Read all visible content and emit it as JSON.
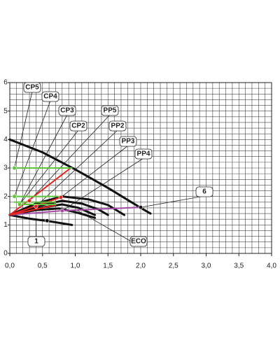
{
  "chart_data": {
    "type": "line",
    "xlim": [
      0,
      4
    ],
    "ylim": [
      0,
      6
    ],
    "xticks": [
      {
        "value": 0,
        "label": "0,0"
      },
      {
        "value": 0.5,
        "label": "0,5"
      },
      {
        "value": 1,
        "label": "1,0"
      },
      {
        "value": 1.5,
        "label": "1,5"
      },
      {
        "value": 2,
        "label": "2,0"
      },
      {
        "value": 2.5,
        "label": "2,5"
      },
      {
        "value": 3,
        "label": "3,0"
      },
      {
        "value": 3.5,
        "label": "3,5"
      },
      {
        "value": 4,
        "label": "4,0"
      }
    ],
    "yticks": [
      0,
      1,
      2,
      3,
      4,
      5,
      6
    ],
    "grid": true,
    "x_grid_step": 0.1,
    "y_grid_step": 0.2,
    "series": [
      {
        "color": "#111111",
        "width": 3,
        "x": [
          0,
          0.5,
          1.0,
          1.5,
          2.0,
          2.15
        ],
        "values": [
          4.0,
          3.55,
          2.95,
          2.3,
          1.6,
          1.4
        ]
      },
      {
        "color": "#111111",
        "width": 3,
        "x": [
          0,
          0.3,
          0.6,
          0.95
        ],
        "values": [
          1.35,
          1.22,
          1.13,
          1.0
        ]
      },
      {
        "color": "#111111",
        "width": 3,
        "x": [
          0,
          0.4,
          0.8,
          1.2,
          1.5,
          1.75
        ],
        "values": [
          1.35,
          1.75,
          2.0,
          1.9,
          1.7,
          1.35
        ]
      },
      {
        "color": "#111111",
        "width": 3,
        "x": [
          0,
          0.4,
          0.8,
          1.1,
          1.35,
          1.5
        ],
        "values": [
          1.35,
          1.65,
          1.85,
          1.75,
          1.55,
          1.35
        ]
      },
      {
        "color": "#111111",
        "width": 3,
        "x": [
          0,
          0.4,
          0.8,
          1.05,
          1.3
        ],
        "values": [
          1.35,
          1.58,
          1.72,
          1.6,
          1.35
        ]
      },
      {
        "color": "#111111",
        "width": 3,
        "x": [
          0,
          0.4,
          0.75,
          1.0,
          1.3
        ],
        "values": [
          1.35,
          1.52,
          1.58,
          1.45,
          1.25
        ]
      },
      {
        "color": "#a64ca6",
        "width": 2,
        "x": [
          0,
          0.8,
          2.0
        ],
        "values": [
          1.35,
          1.5,
          1.62
        ]
      },
      {
        "color": "#e8231f",
        "width": 2,
        "x": [
          0,
          0.93
        ],
        "values": [
          1.35,
          3.0
        ]
      },
      {
        "color": "#e8231f",
        "width": 2,
        "x": [
          0,
          0.78
        ],
        "values": [
          1.35,
          1.97
        ]
      },
      {
        "color": "#e8231f",
        "width": 2,
        "x": [
          0,
          0.7
        ],
        "values": [
          1.35,
          1.7
        ]
      },
      {
        "color": "#5ec43a",
        "width": 2,
        "x": [
          0.07,
          0.95
        ],
        "values": [
          3.0,
          3.0
        ]
      },
      {
        "color": "#5ec43a",
        "width": 2,
        "x": [
          0.07,
          0.8
        ],
        "values": [
          2.0,
          2.0
        ]
      },
      {
        "color": "#5ec43a",
        "width": 2,
        "x": [
          0.07,
          0.7
        ],
        "values": [
          1.8,
          1.8
        ]
      },
      {
        "color": "#5ec43a",
        "width": 2,
        "x": [
          0.15,
          0.7
        ],
        "values": [
          1.72,
          1.72
        ]
      }
    ],
    "points": [
      {
        "x": 0.07,
        "y": 3.0,
        "color": "#5ec43a"
      },
      {
        "x": 0.07,
        "y": 2.0,
        "color": "#5ec43a"
      },
      {
        "x": 0.15,
        "y": 1.72,
        "color": "#5ec43a"
      },
      {
        "x": 0.3,
        "y": 1.85,
        "color": "#e8231f"
      },
      {
        "x": 0.4,
        "y": 1.65,
        "color": "#e8231f"
      },
      {
        "x": 0.78,
        "y": 1.97,
        "color": "#e8231f"
      },
      {
        "x": 0.8,
        "y": 1.5,
        "color": "#a64ca6"
      },
      {
        "x": 2.0,
        "y": 1.62,
        "color": "#111111"
      },
      {
        "x": 0.57,
        "y": 1.15,
        "color": "#111111"
      }
    ],
    "annotations": [
      "CP5",
      "CP4",
      "CP3",
      "CP2",
      "PP5",
      "PP2",
      "PP3",
      "PP4",
      "6",
      "ECO",
      "1"
    ]
  }
}
